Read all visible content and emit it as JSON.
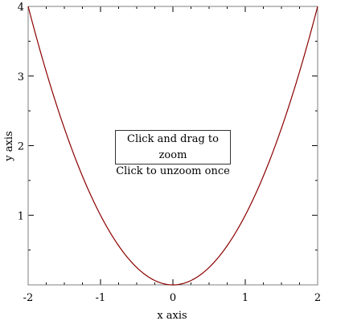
{
  "chart_data": {
    "type": "line",
    "function": "y = x^2",
    "x": [
      -2,
      -1.5,
      -1,
      -0.5,
      0,
      0.5,
      1,
      1.5,
      2
    ],
    "y": [
      4,
      2.25,
      1,
      0.25,
      0,
      0.25,
      1,
      2.25,
      4
    ],
    "xlim": [
      -2,
      2
    ],
    "ylim": [
      0,
      4
    ],
    "xticks": [
      "-2",
      "-1",
      "0",
      "1",
      "2"
    ],
    "yticks": [
      "1",
      "2",
      "3",
      "4"
    ],
    "xlabel": "x axis",
    "ylabel": "y axis",
    "line_color": "#8b0000",
    "grid": false
  },
  "hint": {
    "line1": "Click and drag to zoom",
    "line2": "Click to unzoom once"
  }
}
